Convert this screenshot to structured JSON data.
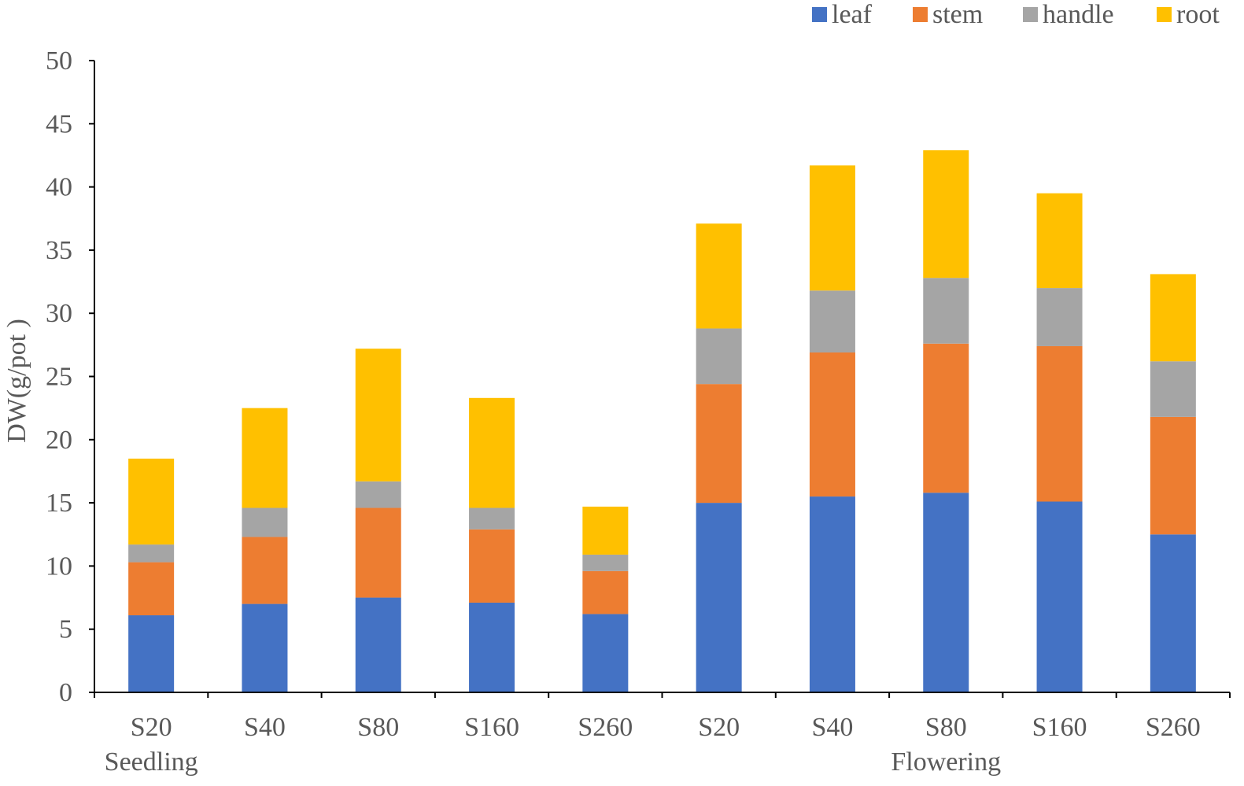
{
  "chart_data": {
    "type": "bar",
    "stacked": true,
    "title": "",
    "xlabel": "",
    "ylabel": "DW(g/pot )",
    "ylim": [
      0,
      50
    ],
    "yticks": [
      0,
      5,
      10,
      15,
      20,
      25,
      30,
      35,
      40,
      45,
      50
    ],
    "categories": [
      "S20",
      "S40",
      "S80",
      "S160",
      "S260",
      "S20",
      "S40",
      "S80",
      "S160",
      "S260"
    ],
    "groups": [
      {
        "label": "Seedling",
        "start": 0,
        "end": 4
      },
      {
        "label": "Flowering",
        "start": 5,
        "end": 9
      }
    ],
    "series": [
      {
        "name": "leaf",
        "color": "#4472C4",
        "values": [
          6.1,
          7.0,
          7.5,
          7.1,
          6.2,
          15.0,
          15.5,
          15.8,
          15.1,
          12.5
        ]
      },
      {
        "name": "stem",
        "color": "#ED7D31",
        "values": [
          4.2,
          5.3,
          7.1,
          5.8,
          3.4,
          9.4,
          11.4,
          11.8,
          12.3,
          9.3
        ]
      },
      {
        "name": "handle",
        "color": "#A5A5A5",
        "values": [
          1.4,
          2.3,
          2.1,
          1.7,
          1.3,
          4.4,
          4.9,
          5.2,
          4.6,
          4.4
        ]
      },
      {
        "name": "root",
        "color": "#FFC000",
        "values": [
          6.8,
          7.9,
          10.5,
          8.7,
          3.8,
          8.3,
          9.9,
          10.1,
          7.5,
          6.9
        ]
      }
    ],
    "legend_position": "top-right",
    "grid": false
  }
}
